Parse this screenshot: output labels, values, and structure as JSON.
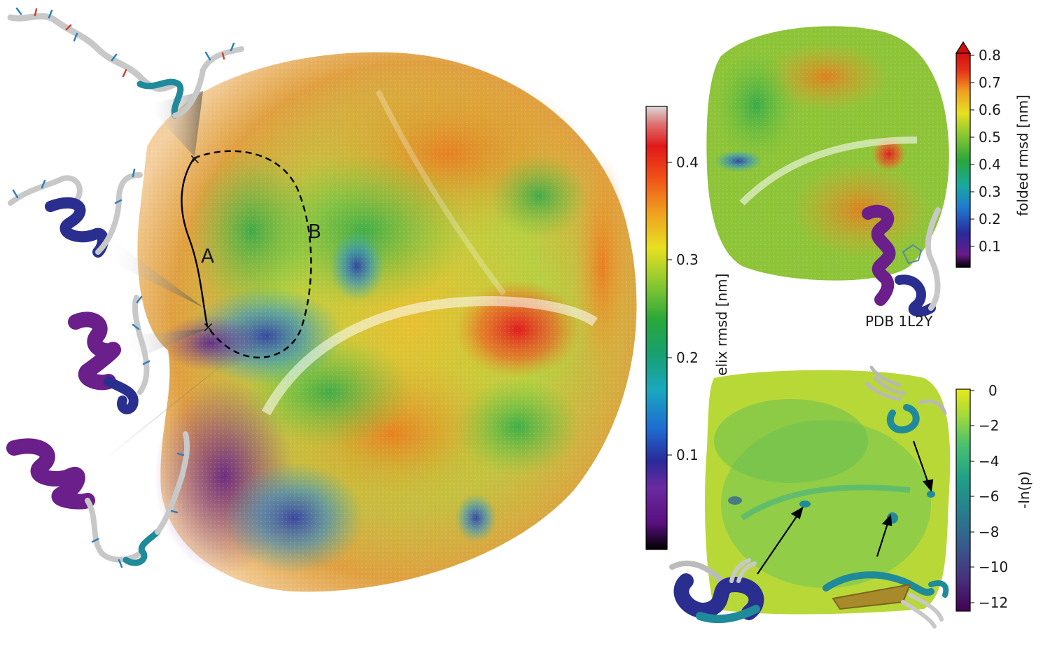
{
  "main_panel": {
    "path_labels": {
      "a": "A",
      "b": "B"
    },
    "colorbar": {
      "label": "helix rmsd [nm]",
      "ticks": [
        "0.4",
        "0.3",
        "0.2",
        "0.1"
      ],
      "range": [
        0.0,
        0.46
      ],
      "colormap": "spectral"
    }
  },
  "top_right_panel": {
    "structure_caption": "PDB 1L2Y",
    "colorbar": {
      "label": "folded rmsd [nm]",
      "ticks": [
        "0.8",
        "0.7",
        "0.6",
        "0.5",
        "0.4",
        "0.3",
        "0.2",
        "0.1"
      ],
      "range": [
        0.03,
        0.8
      ],
      "extend": "max"
    }
  },
  "bottom_right_panel": {
    "colorbar": {
      "label": "-ln(p)",
      "ticks": [
        "0",
        "−2",
        "−4",
        "−6",
        "−8",
        "−10",
        "−12"
      ],
      "range": [
        -12.5,
        0
      ],
      "colormap": "viridis"
    }
  },
  "colors": {
    "helix_purple": "#6a1f8a",
    "helix_blue": "#2a2f8f",
    "turn_teal": "#1f8a9a",
    "sheet_gold": "#a88a2a",
    "coil_gray": "#c8c8c8"
  }
}
